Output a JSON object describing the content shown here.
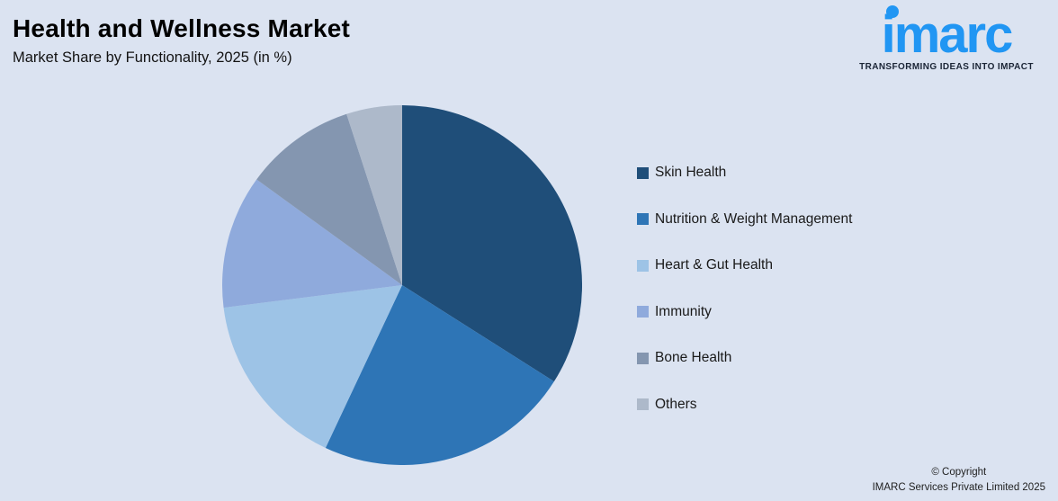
{
  "title": "Health and Wellness Market",
  "subtitle": "Market Share by Functionality, 2025 (in %)",
  "logo": {
    "brand": "imarc",
    "tagline": "TRANSFORMING IDEAS INTO IMPACT",
    "brand_color": "#2196F3"
  },
  "footer": {
    "line1": "© Copyright",
    "line2": "IMARC Services Private Limited 2025"
  },
  "colors": {
    "background": "#dbe3f1"
  },
  "chart_data": {
    "type": "pie",
    "title": "Health and Wellness Market — Market Share by Functionality, 2025 (in %)",
    "categories": [
      "Skin Health",
      "Nutrition & Weight Management",
      "Heart & Gut Health",
      "Immunity",
      "Bone Health",
      "Others"
    ],
    "values": [
      34,
      23,
      16,
      12,
      10,
      5
    ],
    "colors": [
      "#1F4E79",
      "#2E75B6",
      "#9DC3E6",
      "#8FAADC",
      "#8496B0",
      "#ADB9CA"
    ],
    "start_angle_deg": 0,
    "direction": "clockwise",
    "legend_position": "right",
    "data_labels": false
  }
}
